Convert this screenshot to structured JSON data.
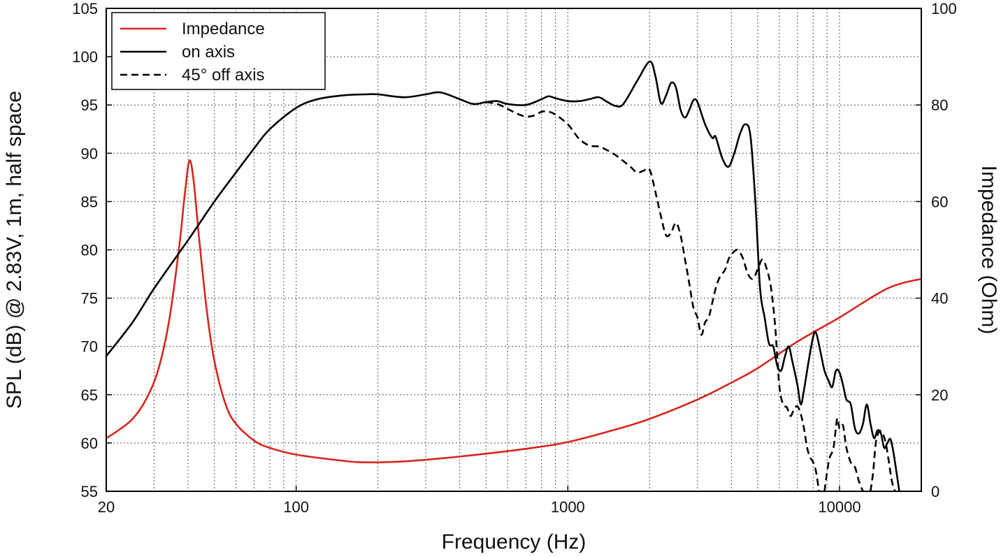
{
  "chart_data": {
    "type": "line",
    "xlabel": "Frequency (Hz)",
    "ylabel_left": "SPL (dB) @ 2.83V, 1m, half space",
    "ylabel_right": "Impedance (Ohm)",
    "x_scale": "log",
    "xlim": [
      20,
      20000
    ],
    "ylim_left": [
      55,
      105
    ],
    "ylim_right": [
      0,
      100
    ],
    "grid": true,
    "legend_position": "top-left",
    "x_ticks": [
      20,
      100,
      1000,
      10000
    ],
    "x_tick_labels": [
      "20",
      "100",
      "1000",
      "10000"
    ],
    "y_ticks_left": [
      55,
      60,
      65,
      70,
      75,
      80,
      85,
      90,
      95,
      100,
      105
    ],
    "y_tick_labels_left": [
      "55",
      "60",
      "65",
      "70",
      "75",
      "80",
      "85",
      "90",
      "95",
      "100",
      "105"
    ],
    "y_ticks_right": [
      0,
      20,
      40,
      60,
      80,
      100
    ],
    "y_tick_labels_right": [
      "0",
      "20",
      "40",
      "60",
      "80",
      "100"
    ],
    "series": [
      {
        "name": "Impedance",
        "axis": "right",
        "color": "#d7261e",
        "style": "solid",
        "points": [
          [
            20,
            11
          ],
          [
            22,
            12.5
          ],
          [
            25,
            15
          ],
          [
            28,
            19
          ],
          [
            31,
            25
          ],
          [
            34,
            35
          ],
          [
            37,
            50
          ],
          [
            39,
            62
          ],
          [
            40.5,
            68.5
          ],
          [
            42,
            64
          ],
          [
            44,
            52
          ],
          [
            47,
            37
          ],
          [
            50,
            27
          ],
          [
            55,
            18
          ],
          [
            60,
            14
          ],
          [
            70,
            10.5
          ],
          [
            80,
            9
          ],
          [
            100,
            7.6
          ],
          [
            150,
            6.3
          ],
          [
            180,
            6.0
          ],
          [
            250,
            6.2
          ],
          [
            400,
            7.2
          ],
          [
            700,
            8.8
          ],
          [
            1000,
            10.2
          ],
          [
            1500,
            12.8
          ],
          [
            2000,
            15
          ],
          [
            3000,
            19
          ],
          [
            4000,
            22.5
          ],
          [
            5000,
            25.5
          ],
          [
            7000,
            31
          ],
          [
            10000,
            36
          ],
          [
            15000,
            42
          ],
          [
            20000,
            44
          ]
        ]
      },
      {
        "name": "on axis",
        "axis": "left",
        "color": "#000000",
        "style": "solid",
        "points": [
          [
            20,
            69
          ],
          [
            25,
            72.5
          ],
          [
            30,
            76
          ],
          [
            40,
            81
          ],
          [
            50,
            85
          ],
          [
            60,
            88
          ],
          [
            70,
            90.5
          ],
          [
            80,
            92.5
          ],
          [
            100,
            94.7
          ],
          [
            120,
            95.6
          ],
          [
            150,
            96
          ],
          [
            180,
            96.1
          ],
          [
            200,
            96.1
          ],
          [
            250,
            95.8
          ],
          [
            300,
            96.1
          ],
          [
            340,
            96.3
          ],
          [
            400,
            95.6
          ],
          [
            450,
            95.1
          ],
          [
            500,
            95.3
          ],
          [
            550,
            95.4
          ],
          [
            600,
            95.1
          ],
          [
            700,
            95
          ],
          [
            800,
            95.6
          ],
          [
            850,
            95.9
          ],
          [
            900,
            95.7
          ],
          [
            1000,
            95.4
          ],
          [
            1100,
            95.4
          ],
          [
            1200,
            95.6
          ],
          [
            1300,
            95.8
          ],
          [
            1400,
            95.3
          ],
          [
            1500,
            94.9
          ],
          [
            1600,
            95.1
          ],
          [
            1800,
            97.5
          ],
          [
            2000,
            99.5
          ],
          [
            2100,
            98
          ],
          [
            2200,
            95.2
          ],
          [
            2300,
            96
          ],
          [
            2400,
            97.3
          ],
          [
            2500,
            96.8
          ],
          [
            2600,
            94.5
          ],
          [
            2700,
            93.7
          ],
          [
            2800,
            94.5
          ],
          [
            2900,
            95.5
          ],
          [
            3000,
            95.3
          ],
          [
            3200,
            93
          ],
          [
            3400,
            91.6
          ],
          [
            3500,
            91.7
          ],
          [
            3700,
            89.5
          ],
          [
            3900,
            88.6
          ],
          [
            4100,
            90
          ],
          [
            4300,
            92
          ],
          [
            4500,
            93
          ],
          [
            4700,
            91.8
          ],
          [
            4900,
            85
          ],
          [
            5100,
            76
          ],
          [
            5300,
            73
          ],
          [
            5500,
            70.3
          ],
          [
            5700,
            70
          ],
          [
            5900,
            68
          ],
          [
            6100,
            67.5
          ],
          [
            6300,
            69
          ],
          [
            6500,
            70
          ],
          [
            6700,
            68.5
          ],
          [
            7000,
            66
          ],
          [
            7200,
            64
          ],
          [
            7400,
            65.5
          ],
          [
            7700,
            68.5
          ],
          [
            8000,
            71
          ],
          [
            8200,
            71.4
          ],
          [
            8500,
            69.5
          ],
          [
            8800,
            67.5
          ],
          [
            9100,
            66.5
          ],
          [
            9400,
            65.8
          ],
          [
            9700,
            67.5
          ],
          [
            10000,
            67.3
          ],
          [
            10300,
            66
          ],
          [
            10600,
            64.5
          ],
          [
            11000,
            64
          ],
          [
            11400,
            61.5
          ],
          [
            11800,
            61
          ],
          [
            12200,
            62
          ],
          [
            12600,
            64
          ],
          [
            13000,
            62
          ],
          [
            13400,
            60.5
          ],
          [
            13800,
            61.3
          ],
          [
            14200,
            61
          ],
          [
            14600,
            59.5
          ],
          [
            15000,
            60
          ],
          [
            15400,
            60.4
          ],
          [
            15800,
            59
          ],
          [
            16200,
            57
          ],
          [
            16600,
            55
          ]
        ]
      },
      {
        "name": "45° off axis",
        "axis": "left",
        "color": "#000000",
        "style": "dashed",
        "points": [
          [
            500,
            95.3
          ],
          [
            550,
            95.1
          ],
          [
            600,
            94.6
          ],
          [
            650,
            94.1
          ],
          [
            700,
            93.8
          ],
          [
            750,
            93.9
          ],
          [
            800,
            94.3
          ],
          [
            850,
            94.3
          ],
          [
            900,
            94
          ],
          [
            1000,
            93
          ],
          [
            1100,
            91.5
          ],
          [
            1200,
            90.8
          ],
          [
            1300,
            90.7
          ],
          [
            1400,
            90.3
          ],
          [
            1500,
            89.8
          ],
          [
            1600,
            89.2
          ],
          [
            1700,
            88.6
          ],
          [
            1800,
            88
          ],
          [
            1900,
            88.2
          ],
          [
            2000,
            88.3
          ],
          [
            2100,
            86
          ],
          [
            2200,
            83.5
          ],
          [
            2300,
            81.5
          ],
          [
            2400,
            81.8
          ],
          [
            2500,
            82.8
          ],
          [
            2600,
            81.5
          ],
          [
            2700,
            79
          ],
          [
            2800,
            76.5
          ],
          [
            2900,
            74
          ],
          [
            3000,
            73
          ],
          [
            3100,
            71.2
          ],
          [
            3200,
            72.5
          ],
          [
            3300,
            73
          ],
          [
            3400,
            74.5
          ],
          [
            3500,
            76
          ],
          [
            3600,
            77
          ],
          [
            3700,
            77.5
          ],
          [
            3800,
            78
          ],
          [
            3900,
            79
          ],
          [
            4000,
            79.5
          ],
          [
            4200,
            80
          ],
          [
            4400,
            79.2
          ],
          [
            4600,
            77.5
          ],
          [
            4800,
            77
          ],
          [
            5000,
            78
          ],
          [
            5200,
            79
          ],
          [
            5400,
            78
          ],
          [
            5600,
            76
          ],
          [
            5800,
            72
          ],
          [
            6000,
            66
          ],
          [
            6200,
            64
          ],
          [
            6400,
            63.7
          ],
          [
            6600,
            62.8
          ],
          [
            6800,
            63.5
          ],
          [
            7000,
            63.8
          ],
          [
            7200,
            63
          ],
          [
            7400,
            61.5
          ],
          [
            7600,
            59.5
          ],
          [
            7800,
            58.5
          ],
          [
            8000,
            58
          ],
          [
            8200,
            57
          ],
          [
            8400,
            55
          ]
        ]
      },
      {
        "name": "45° off axis",
        "axis": "left",
        "color": "#000000",
        "style": "dashed",
        "points": [
          [
            8800,
            55
          ],
          [
            9000,
            57
          ],
          [
            9200,
            58.5
          ],
          [
            9500,
            59.5
          ],
          [
            9800,
            62.5
          ],
          [
            10000,
            61.5
          ],
          [
            10300,
            61.8
          ],
          [
            10600,
            59.5
          ],
          [
            11000,
            58
          ],
          [
            11400,
            57.5
          ],
          [
            11800,
            56
          ],
          [
            12200,
            55
          ]
        ]
      },
      {
        "name": "45° off axis",
        "axis": "left",
        "color": "#000000",
        "style": "dashed",
        "points": [
          [
            13000,
            55
          ],
          [
            13300,
            57
          ],
          [
            13600,
            60
          ],
          [
            14000,
            61.2
          ],
          [
            14400,
            61
          ],
          [
            14800,
            60
          ],
          [
            15200,
            58
          ],
          [
            15600,
            56
          ],
          [
            16000,
            55
          ]
        ]
      }
    ],
    "legend": [
      {
        "label": "Impedance",
        "color": "#d7261e",
        "style": "solid"
      },
      {
        "label": "on axis",
        "color": "#000000",
        "style": "solid"
      },
      {
        "label": "45° off axis",
        "color": "#000000",
        "style": "dashed"
      }
    ]
  }
}
